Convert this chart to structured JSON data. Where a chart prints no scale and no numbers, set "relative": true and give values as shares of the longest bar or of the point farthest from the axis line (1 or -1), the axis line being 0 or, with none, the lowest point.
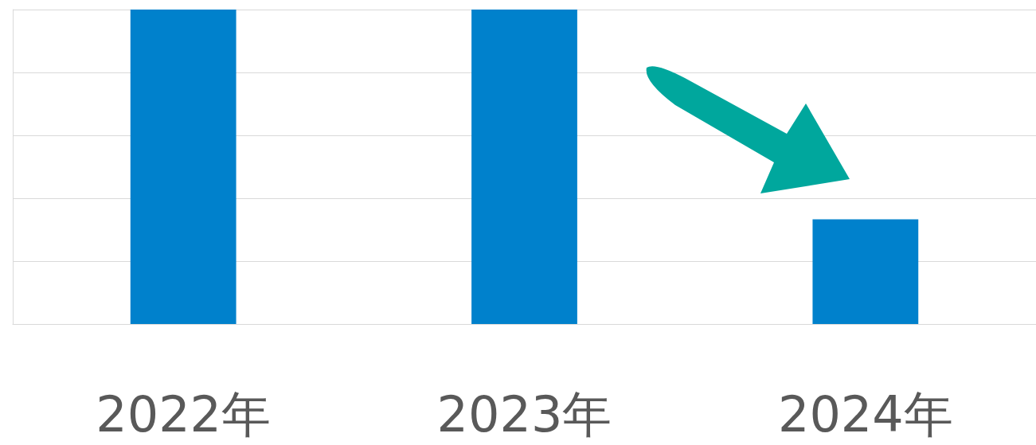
{
  "chart_data": {
    "type": "bar",
    "relative": true,
    "categories": [
      "2022年",
      "2023年",
      "2024年"
    ],
    "values": [
      1,
      1,
      0.333
    ],
    "color": "#0081cc",
    "grid": "y"
  }
}
